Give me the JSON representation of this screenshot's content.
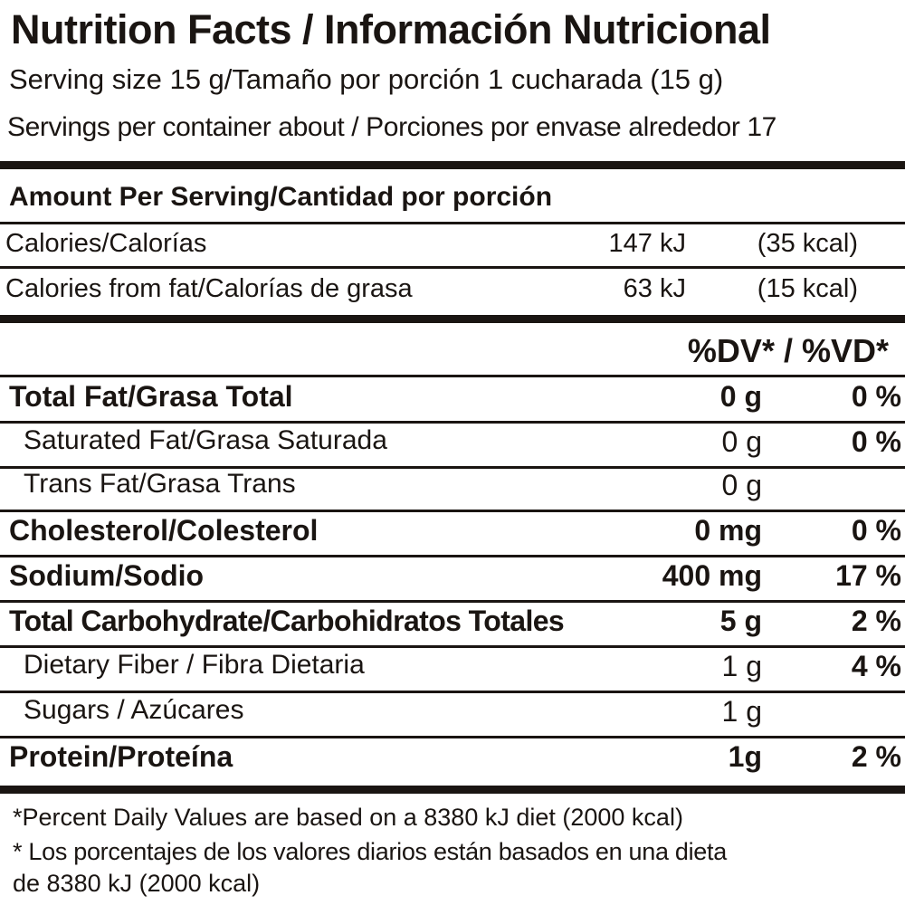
{
  "header": {
    "title": "Nutrition Facts / Información Nutricional",
    "serving_size": "Serving size  15 g/Tamaño por porción 1 cucharada (15 g)",
    "servings_per_container": "Servings per container about / Porciones por envase alrededor 17"
  },
  "amount_per_serving": "Amount Per Serving/Cantidad por porción",
  "calories": {
    "label": "Calories/Calorías",
    "kj": "147 kJ",
    "kcal": "(35 kcal)"
  },
  "calories_from_fat": {
    "label": "Calories from fat/Calorías de grasa",
    "kj": "63 kJ",
    "kcal": "(15 kcal)"
  },
  "dv_header": "%DV* / %VD*",
  "nutrients": [
    {
      "label": "Total Fat/Grasa Total",
      "amount": "0 g",
      "dv": "0 %",
      "bold": true
    },
    {
      "label": "Saturated Fat/Grasa Saturada",
      "amount": "0  g",
      "dv": "0 %",
      "bold": false
    },
    {
      "label": "Trans Fat/Grasa Trans",
      "amount": "0 g",
      "dv": "",
      "bold": false
    },
    {
      "label": "Cholesterol/Colesterol",
      "amount": "0 mg",
      "dv": "0 %",
      "bold": true
    },
    {
      "label": "Sodium/Sodio",
      "amount": "400 mg",
      "dv": "17 %",
      "bold": true
    },
    {
      "label": "Total Carbohydrate/Carbohidratos Totales",
      "amount": "5 g",
      "dv": "2 %",
      "bold": true
    },
    {
      "label": "Dietary Fiber / Fibra Dietaria",
      "amount": "1 g",
      "dv": "4 %",
      "bold": false
    },
    {
      "label": "Sugars / Azúcares",
      "amount": "1 g",
      "dv": "",
      "bold": false
    },
    {
      "label": "Protein/Proteína",
      "amount": "1g",
      "dv": "2 %",
      "bold": true
    }
  ],
  "footnotes": {
    "en": "*Percent Daily Values are based on a 8380 kJ diet  (2000 kcal)",
    "es_line1": "* Los porcentajes de los valores diarios están basados en una dieta",
    "es_line2": "de 8380 kJ (2000 kcal)"
  }
}
